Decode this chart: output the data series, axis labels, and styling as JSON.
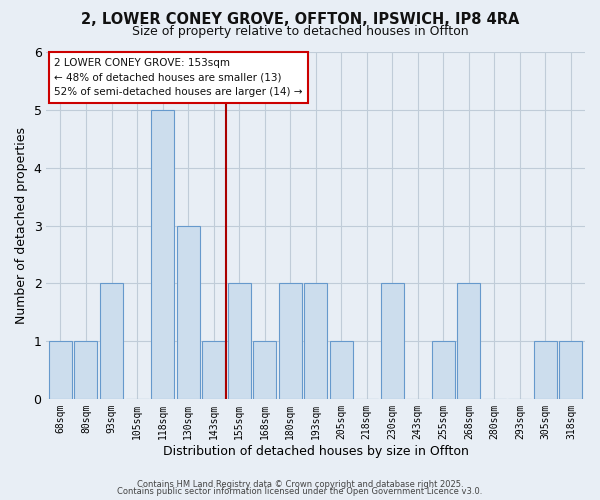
{
  "title_line1": "2, LOWER CONEY GROVE, OFFTON, IPSWICH, IP8 4RA",
  "title_line2": "Size of property relative to detached houses in Offton",
  "xlabel": "Distribution of detached houses by size in Offton",
  "ylabel": "Number of detached properties",
  "bar_labels": [
    "68sqm",
    "80sqm",
    "93sqm",
    "105sqm",
    "118sqm",
    "130sqm",
    "143sqm",
    "155sqm",
    "168sqm",
    "180sqm",
    "193sqm",
    "205sqm",
    "218sqm",
    "230sqm",
    "243sqm",
    "255sqm",
    "268sqm",
    "280sqm",
    "293sqm",
    "305sqm",
    "318sqm"
  ],
  "bar_heights": [
    1,
    1,
    2,
    0,
    5,
    3,
    1,
    2,
    1,
    2,
    2,
    1,
    0,
    2,
    0,
    1,
    2,
    0,
    0,
    1,
    1
  ],
  "bar_color": "#ccdded",
  "bar_edge_color": "#6699cc",
  "vline_x_label": "155sqm",
  "vline_color": "#aa0000",
  "annotation_title": "2 LOWER CONEY GROVE: 153sqm",
  "annotation_line1": "← 48% of detached houses are smaller (13)",
  "annotation_line2": "52% of semi-detached houses are larger (14) →",
  "annotation_box_facecolor": "#ffffff",
  "annotation_box_edgecolor": "#cc0000",
  "ylim": [
    0,
    6
  ],
  "yticks": [
    0,
    1,
    2,
    3,
    4,
    5,
    6
  ],
  "background_color": "#e8eef5",
  "plot_bg_color": "#e8eef5",
  "grid_color": "#c0ccd8",
  "footer_line1": "Contains HM Land Registry data © Crown copyright and database right 2025.",
  "footer_line2": "Contains public sector information licensed under the Open Government Licence v3.0."
}
